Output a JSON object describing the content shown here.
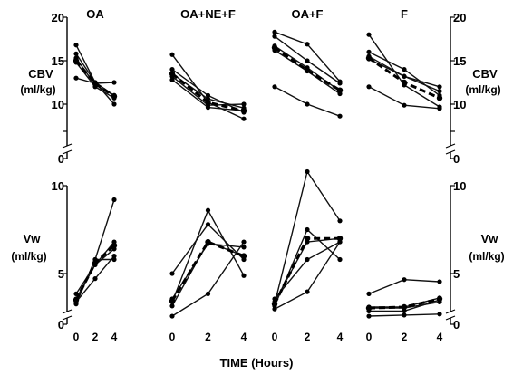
{
  "chart_data": {
    "type": "line",
    "xlabel": "TIME (Hours)",
    "x": [
      0,
      2,
      4
    ],
    "x_ticks": [
      "0",
      "2",
      "4"
    ],
    "rows": [
      {
        "ylabel_line1": "CBV",
        "ylabel_line2": "(ml/kg)",
        "ylim": [
          0,
          20
        ],
        "y_ticks": [
          0,
          5,
          10,
          15,
          20
        ],
        "y_tick_labels_left": [
          "0",
          "",
          "10",
          "15",
          "20"
        ],
        "y_tick_labels_right": [
          "0",
          "",
          "10",
          "15",
          "20"
        ],
        "axis_break": true
      },
      {
        "ylabel_line1": "Vw",
        "ylabel_line2": "(ml/kg)",
        "ylim": [
          0,
          10
        ],
        "y_ticks": [
          0,
          5,
          10
        ],
        "y_tick_labels_left": [
          "0",
          "5",
          "10"
        ],
        "y_tick_labels_right": [
          "0",
          "5",
          "10"
        ],
        "axis_break": true
      }
    ],
    "panels": [
      {
        "title": "OA",
        "cbv": {
          "series": [
            [
              16.8,
              12.5,
              10.0
            ],
            [
              15.8,
              12.5,
              11.0
            ],
            [
              15.3,
              12.2,
              11.0
            ],
            [
              14.8,
              12.0,
              10.7
            ],
            [
              13.0,
              12.4,
              12.5
            ]
          ],
          "mean": [
            15.0,
            12.4,
            10.9
          ]
        },
        "vw": {
          "series": [
            [
              2.0,
              5.8,
              9.2
            ],
            [
              2.2,
              4.5,
              6.0
            ],
            [
              2.5,
              5.5,
              6.8
            ],
            [
              3.0,
              5.5,
              6.4
            ],
            [
              2.1,
              5.8,
              5.8
            ]
          ],
          "mean": [
            2.4,
            5.6,
            6.6
          ]
        }
      },
      {
        "title": "OA+NE+F",
        "cbv": {
          "series": [
            [
              15.7,
              10.2,
              7.3
            ],
            [
              14.0,
              11.0,
              8.5
            ],
            [
              13.5,
              10.6,
              9.3
            ],
            [
              13.2,
              9.8,
              10.0
            ],
            [
              12.8,
              9.4,
              8.8
            ]
          ],
          "mean": [
            13.5,
            10.2,
            8.8
          ]
        },
        "vw": {
          "series": [
            [
              0.8,
              3.0,
              6.8
            ],
            [
              5.0,
              7.8,
              5.8
            ],
            [
              2.2,
              8.6,
              4.8
            ],
            [
              1.8,
              6.8,
              6.0
            ],
            [
              2.5,
              6.7,
              6.5
            ]
          ],
          "mean": [
            2.3,
            6.8,
            6.0
          ]
        }
      },
      {
        "title": "OA+F",
        "cbv": {
          "series": [
            [
              18.3,
              16.9,
              12.6
            ],
            [
              17.8,
              15.0,
              12.4
            ],
            [
              16.7,
              14.2,
              11.5
            ],
            [
              16.2,
              13.8,
              11.2
            ],
            [
              12.0,
              10.0,
              7.8
            ]
          ],
          "mean": [
            16.5,
            13.9,
            11.6
          ]
        },
        "vw": {
          "series": [
            [
              2.0,
              10.8,
              8.0
            ],
            [
              1.8,
              7.5,
              5.8
            ],
            [
              1.5,
              3.2,
              6.8
            ],
            [
              2.5,
              5.8,
              6.8
            ],
            [
              2.2,
              6.8,
              7.0
            ]
          ],
          "mean": [
            2.0,
            7.0,
            7.0
          ]
        }
      },
      {
        "title": "F",
        "cbv": {
          "series": [
            [
              18.0,
              12.2,
              9.5
            ],
            [
              16.0,
              14.0,
              11.0
            ],
            [
              15.5,
              13.2,
              11.5
            ],
            [
              15.2,
              13.2,
              12.0
            ],
            [
              12.0,
              9.8,
              9.2
            ]
          ],
          "mean": [
            15.3,
            12.5,
            10.7
          ]
        },
        "vw": {
          "series": [
            [
              3.0,
              4.4,
              4.2
            ],
            [
              1.7,
              1.7,
              2.6
            ],
            [
              1.3,
              1.3,
              2.4
            ],
            [
              1.6,
              1.6,
              2.2
            ],
            [
              0.8,
              0.9,
              1.0
            ]
          ],
          "mean": [
            1.6,
            1.7,
            2.5
          ]
        }
      }
    ]
  }
}
